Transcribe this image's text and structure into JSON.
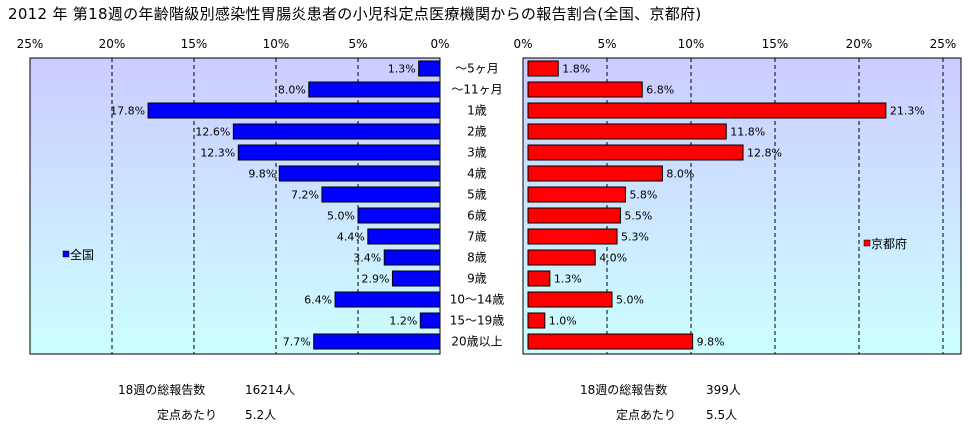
{
  "title": "2012 年 第18週の年齢階級別感染性胃腸炎患者の小児科定点医療機関からの報告割合(全国、京都府)",
  "chart_data": {
    "type": "bar",
    "orientation": "horizontal",
    "categories": [
      "～5ヶ月",
      "～11ヶ月",
      "1歳",
      "2歳",
      "3歳",
      "4歳",
      "5歳",
      "6歳",
      "7歳",
      "8歳",
      "9歳",
      "10～14歳",
      "15～19歳",
      "20歳以上"
    ],
    "series": [
      {
        "name": "全国",
        "color": "#0000ff",
        "values": [
          1.3,
          8.0,
          17.8,
          12.6,
          12.3,
          9.8,
          7.2,
          5.0,
          4.4,
          3.4,
          2.9,
          6.4,
          1.2,
          7.7
        ],
        "labels": [
          "1.3%",
          "8.0%",
          "17.8%",
          "12.6%",
          "12.3%",
          "9.8%",
          "7.2%",
          "5.0%",
          "4.4%",
          "3.4%",
          "2.9%",
          "6.4%",
          "1.2%",
          "7.7%"
        ]
      },
      {
        "name": "京都府",
        "color": "#ff0000",
        "values": [
          1.8,
          6.8,
          21.3,
          11.8,
          12.8,
          8.0,
          5.8,
          5.5,
          5.3,
          4.0,
          1.3,
          5.0,
          1.0,
          9.8
        ],
        "labels": [
          "1.8%",
          "6.8%",
          "21.3%",
          "11.8%",
          "12.8%",
          "8.0%",
          "5.8%",
          "5.5%",
          "5.3%",
          "4.0%",
          "1.3%",
          "5.0%",
          "1.0%",
          "9.8%"
        ]
      }
    ],
    "xlim": [
      0,
      25
    ],
    "left_ticks": [
      "25%",
      "20%",
      "15%",
      "10%",
      "5%",
      "0%"
    ],
    "right_ticks": [
      "0%",
      "5%",
      "10%",
      "15%",
      "20%",
      "25%"
    ],
    "grid": true,
    "left_legend": "全国",
    "right_legend": "京都府",
    "colors": {
      "plot_bg_top": "#ccccff",
      "plot_bg_bottom": "#ccffff"
    }
  },
  "stats": {
    "national": {
      "reports_label": "18週の総報告数",
      "reports_value": "16214人",
      "per_site_label": "定点あたり",
      "per_site_value": "5.2人"
    },
    "kyoto": {
      "reports_label": "18週の総報告数",
      "reports_value": "399人",
      "per_site_label": "定点あたり",
      "per_site_value": "5.5人"
    }
  }
}
